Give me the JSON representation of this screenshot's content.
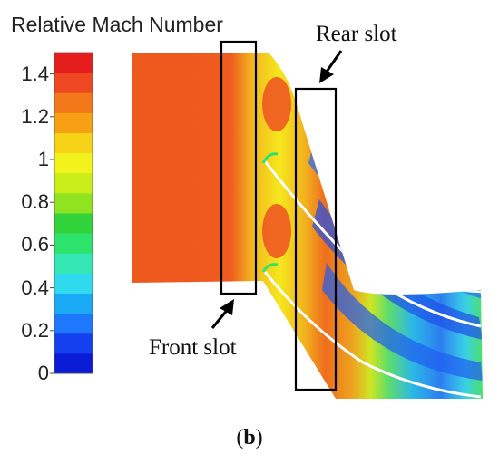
{
  "legend": {
    "title": "Relative Mach Number",
    "ticks": [
      "1.4",
      "1.2",
      "1",
      "0.8",
      "0.6",
      "0.4",
      "0.2",
      "0"
    ],
    "range": [
      0,
      1.5
    ],
    "colors": [
      "#0a1cd6",
      "#1440f0",
      "#1e78ff",
      "#1aaaf5",
      "#2fd9ee",
      "#33e6b4",
      "#2ee36b",
      "#32d23a",
      "#8fe321",
      "#c9ee1a",
      "#f2f21c",
      "#f7d317",
      "#f7a013",
      "#f2781a",
      "#ee4822",
      "#e61d1d"
    ]
  },
  "annotations": {
    "rear_slot": "Rear slot",
    "front_slot": "Front slot"
  },
  "caption": {
    "open": "(",
    "letter": "b",
    "close": ")"
  }
}
